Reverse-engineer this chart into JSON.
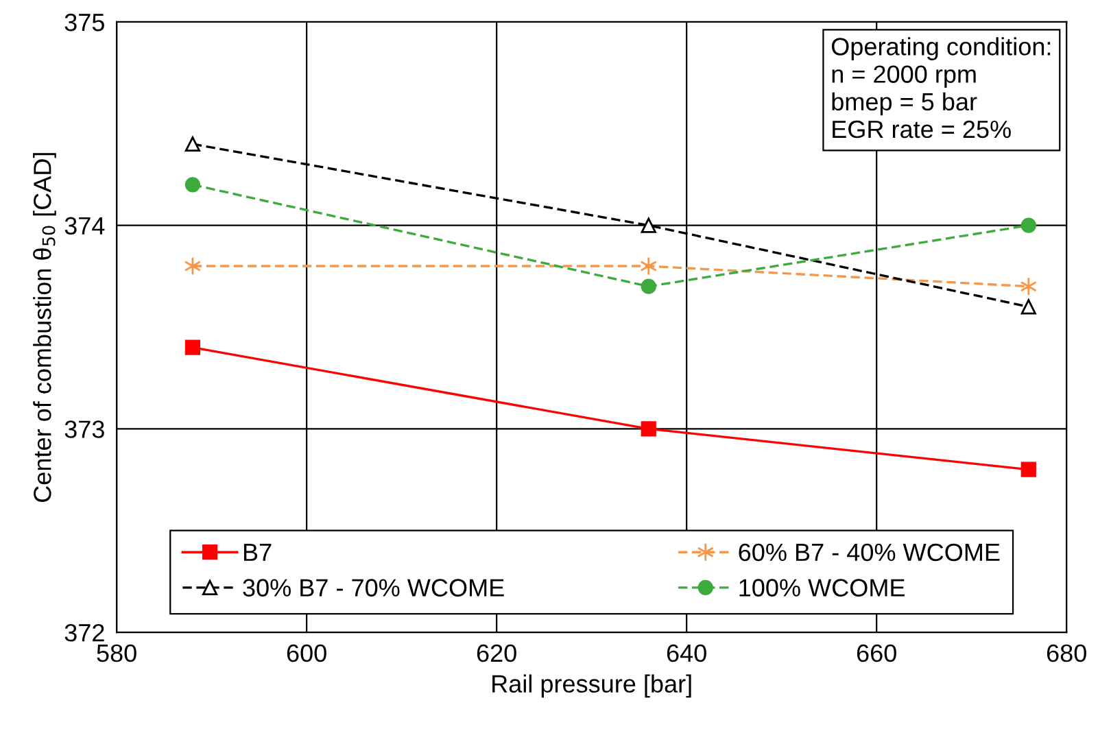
{
  "chart_data": {
    "type": "line",
    "xlabel": "Rail pressure [bar]",
    "ylabel": "Center of combustion θ$_{50}$ [CAD]",
    "xlim": [
      580,
      680
    ],
    "xticks": [
      580,
      600,
      620,
      640,
      660,
      680
    ],
    "ylim": [
      372,
      375
    ],
    "yticks": [
      372,
      373,
      374,
      375
    ],
    "grid": true,
    "legend": "bottom",
    "x": [
      588,
      636,
      676
    ],
    "series": [
      {
        "name": "B7",
        "color": "#ff0000",
        "values": [
          373.4,
          373.0,
          372.8
        ],
        "marker": "square",
        "line_style": "solid"
      },
      {
        "name": "60% B7 - 40% WCOME",
        "color": "#f79646",
        "values": [
          373.8,
          373.8,
          373.7
        ],
        "marker": "cross",
        "line_style": "dashed"
      },
      {
        "name": "30% B7 - 70% WCOME",
        "color": "#000000",
        "values": [
          374.4,
          374.0,
          373.6
        ],
        "marker": "triangle",
        "line_style": "dashed"
      },
      {
        "name": "100% WCOME",
        "color": "#3caa3c",
        "values": [
          374.2,
          373.7,
          374.0
        ],
        "marker": "circle",
        "line_style": "dashed"
      }
    ],
    "annotations": [
      "Operating condition:\nn = 2000 rpm\nbmep = 5 bar\nEGR rate = 25%"
    ]
  }
}
